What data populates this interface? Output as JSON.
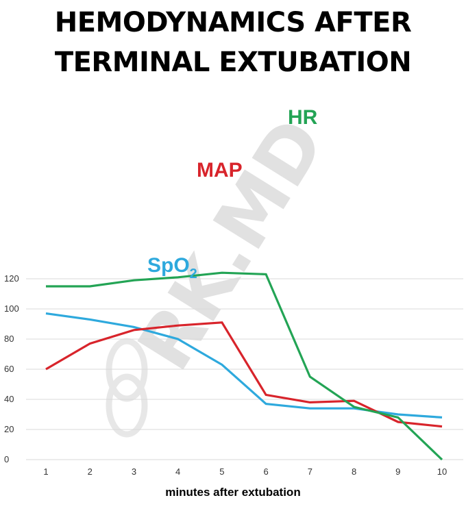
{
  "chart_data": {
    "type": "line",
    "title": [
      "HEMODYNAMICS AFTER",
      "TERMINAL EXTUBATION"
    ],
    "xlabel": "minutes after extubation",
    "ylabel": "",
    "x": [
      1,
      2,
      3,
      4,
      5,
      6,
      7,
      8,
      9,
      10
    ],
    "yticks": [
      0,
      20,
      40,
      60,
      80,
      100,
      120
    ],
    "ylim": [
      0,
      124
    ],
    "grid": true,
    "series": [
      {
        "name": "HR",
        "color": "#23a455",
        "values": [
          115,
          115,
          119,
          121,
          124,
          123,
          55,
          35,
          28,
          0
        ]
      },
      {
        "name": "MAP",
        "color": "#d8242b",
        "values": [
          60,
          77,
          86,
          89,
          91,
          43,
          38,
          39,
          25,
          22
        ]
      },
      {
        "name": "SpO",
        "subscript": "2",
        "color": "#2ea9dd",
        "values": [
          97,
          93,
          88,
          80,
          63,
          37,
          34,
          34,
          30,
          28
        ]
      }
    ],
    "annotations": {
      "watermark": "RK.MD"
    }
  }
}
